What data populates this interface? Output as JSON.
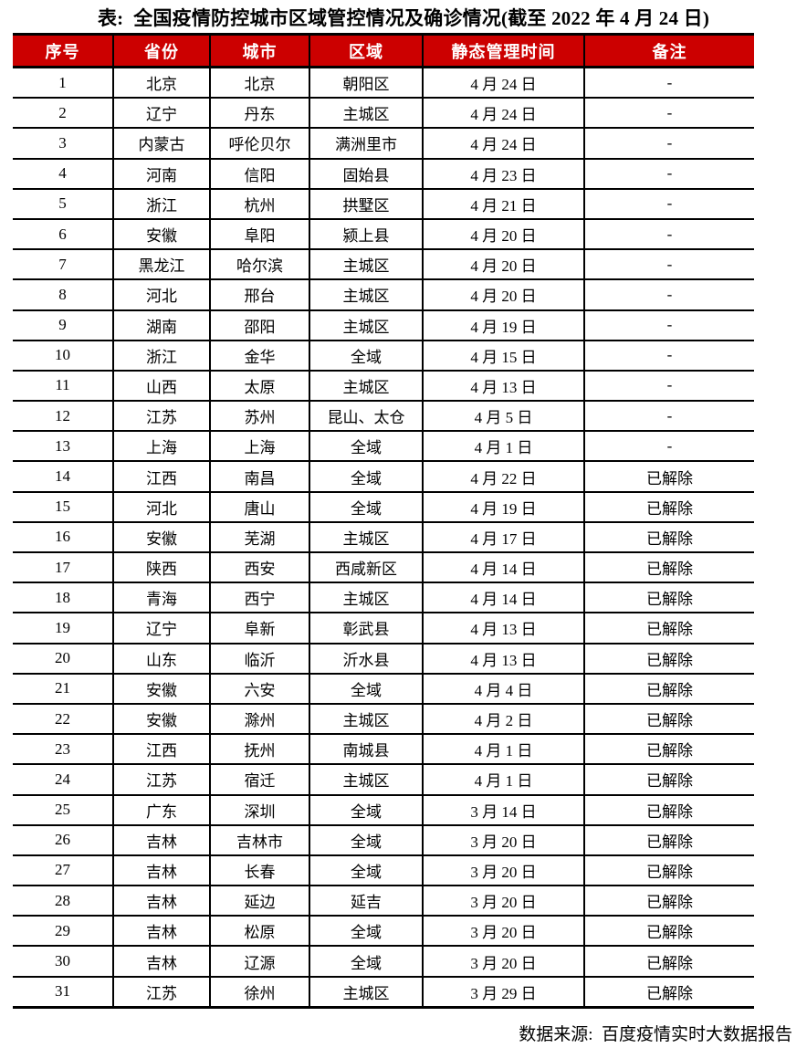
{
  "title": "表:  全国疫情防控城市区域管控情况及确诊情况(截至 2022 年 4 月 24 日)",
  "table": {
    "header_bg": "#cc0000",
    "header_text_color": "#ffffff",
    "border_color": "#000000",
    "headers": [
      "序号",
      "省份",
      "城市",
      "区域",
      "静态管理时间",
      "备注"
    ],
    "column_keys": [
      "index",
      "province",
      "city",
      "region",
      "static-management-date",
      "note"
    ],
    "rows": [
      [
        "1",
        "北京",
        "北京",
        "朝阳区",
        "4 月 24 日",
        "-"
      ],
      [
        "2",
        "辽宁",
        "丹东",
        "主城区",
        "4 月 24 日",
        "-"
      ],
      [
        "3",
        "内蒙古",
        "呼伦贝尔",
        "满洲里市",
        "4 月 24 日",
        "-"
      ],
      [
        "4",
        "河南",
        "信阳",
        "固始县",
        "4 月 23 日",
        "-"
      ],
      [
        "5",
        "浙江",
        "杭州",
        "拱墅区",
        "4 月 21 日",
        "-"
      ],
      [
        "6",
        "安徽",
        "阜阳",
        "颍上县",
        "4 月 20 日",
        "-"
      ],
      [
        "7",
        "黑龙江",
        "哈尔滨",
        "主城区",
        "4 月 20 日",
        "-"
      ],
      [
        "8",
        "河北",
        "邢台",
        "主城区",
        "4 月 20 日",
        "-"
      ],
      [
        "9",
        "湖南",
        "邵阳",
        "主城区",
        "4 月 19 日",
        "-"
      ],
      [
        "10",
        "浙江",
        "金华",
        "全域",
        "4 月 15 日",
        "-"
      ],
      [
        "11",
        "山西",
        "太原",
        "主城区",
        "4 月 13 日",
        "-"
      ],
      [
        "12",
        "江苏",
        "苏州",
        "昆山、太仓",
        "4 月 5 日",
        "-"
      ],
      [
        "13",
        "上海",
        "上海",
        "全域",
        "4 月 1 日",
        "-"
      ],
      [
        "14",
        "江西",
        "南昌",
        "全域",
        "4 月 22 日",
        "已解除"
      ],
      [
        "15",
        "河北",
        "唐山",
        "全域",
        "4 月 19 日",
        "已解除"
      ],
      [
        "16",
        "安徽",
        "芜湖",
        "主城区",
        "4 月 17 日",
        "已解除"
      ],
      [
        "17",
        "陕西",
        "西安",
        "西咸新区",
        "4 月 14 日",
        "已解除"
      ],
      [
        "18",
        "青海",
        "西宁",
        "主城区",
        "4 月 14 日",
        "已解除"
      ],
      [
        "19",
        "辽宁",
        "阜新",
        "彰武县",
        "4 月 13 日",
        "已解除"
      ],
      [
        "20",
        "山东",
        "临沂",
        "沂水县",
        "4 月 13 日",
        "已解除"
      ],
      [
        "21",
        "安徽",
        "六安",
        "全域",
        "4 月 4 日",
        "已解除"
      ],
      [
        "22",
        "安徽",
        "滁州",
        "主城区",
        "4 月 2 日",
        "已解除"
      ],
      [
        "23",
        "江西",
        "抚州",
        "南城县",
        "4 月 1 日",
        "已解除"
      ],
      [
        "24",
        "江苏",
        "宿迁",
        "主城区",
        "4 月 1 日",
        "已解除"
      ],
      [
        "25",
        "广东",
        "深圳",
        "全域",
        "3 月 14 日",
        "已解除"
      ],
      [
        "26",
        "吉林",
        "吉林市",
        "全域",
        "3 月 20 日",
        "已解除"
      ],
      [
        "27",
        "吉林",
        "长春",
        "全域",
        "3 月 20 日",
        "已解除"
      ],
      [
        "28",
        "吉林",
        "延边",
        "延吉",
        "3 月 20 日",
        "已解除"
      ],
      [
        "29",
        "吉林",
        "松原",
        "全域",
        "3 月 20 日",
        "已解除"
      ],
      [
        "30",
        "吉林",
        "辽源",
        "全域",
        "3 月 20 日",
        "已解除"
      ],
      [
        "31",
        "江苏",
        "徐州",
        "主城区",
        "3 月 29 日",
        "已解除"
      ]
    ]
  },
  "footer": {
    "source_label": "数据来源:  百度疫情实时大数据报告"
  }
}
